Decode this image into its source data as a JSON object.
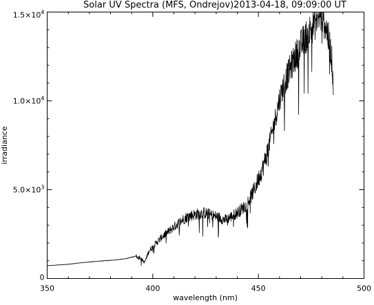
{
  "chart_data": {
    "type": "line",
    "title": "Solar UV Spectra (MFS, Ondrejov)2013-04-18, 09:09:00 UT",
    "xlabel": "wavelength (nm)",
    "ylabel": "irradiance",
    "xlim": [
      350,
      500
    ],
    "ylim": [
      0,
      15000
    ],
    "x_ticks": [
      {
        "value": 350,
        "label": "350"
      },
      {
        "value": 400,
        "label": "400"
      },
      {
        "value": 450,
        "label": "450"
      },
      {
        "value": 500,
        "label": "500"
      }
    ],
    "y_ticks": [
      {
        "value": 0,
        "label": "0",
        "exp": ""
      },
      {
        "value": 5000,
        "label": "5.0×10",
        "exp": "3"
      },
      {
        "value": 10000,
        "label": "1.0×10",
        "exp": "4"
      },
      {
        "value": 15000,
        "label": "1.5×10",
        "exp": "4"
      }
    ],
    "grid": false,
    "colors": {
      "line": "#000000",
      "axes": "#000000",
      "background": "#ffffff"
    },
    "series": [
      {
        "x": [
          350,
          355,
          360,
          365,
          370,
          375,
          380,
          385,
          388,
          390,
          392,
          394,
          395,
          396,
          397,
          398,
          400,
          402,
          404,
          406,
          408,
          410,
          412,
          414,
          416,
          418,
          420,
          422,
          424,
          426,
          428,
          430,
          432,
          434,
          436,
          438,
          440,
          442,
          444,
          446,
          448,
          450,
          452,
          454,
          456,
          458,
          460,
          462,
          464,
          466,
          468,
          470,
          472,
          474,
          476,
          478,
          480,
          482,
          484,
          485,
          485.5
        ],
        "y": [
          720,
          760,
          800,
          870,
          930,
          980,
          1020,
          1080,
          1130,
          1200,
          1250,
          1200,
          1050,
          900,
          1150,
          1500,
          1800,
          2050,
          2300,
          2500,
          2700,
          2900,
          3100,
          3300,
          3450,
          3550,
          3600,
          3650,
          3700,
          3650,
          3550,
          3500,
          3400,
          3300,
          3400,
          3550,
          3700,
          3900,
          4100,
          4500,
          5000,
          5600,
          6200,
          7000,
          8000,
          9000,
          10100,
          10900,
          11500,
          12100,
          12600,
          13100,
          13500,
          13900,
          14300,
          14600,
          14850,
          14200,
          13000,
          12000,
          10800
        ]
      }
    ]
  }
}
